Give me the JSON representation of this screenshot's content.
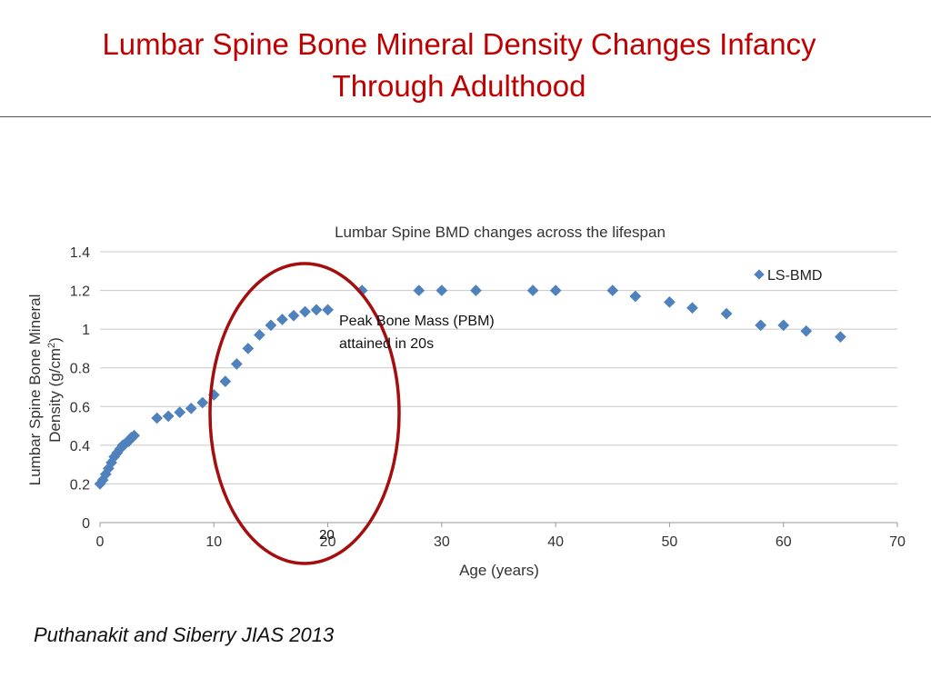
{
  "slide": {
    "title_line1": "Lumbar Spine Bone Mineral Density Changes Infancy",
    "title_line2": "Through Adulthood",
    "citation": "Puthanakit and Siberry JIAS 2013",
    "annotation_line1": "Peak Bone Mass (PBM)",
    "annotation_line2": "attained in 20s",
    "marker_label": "20"
  },
  "colors": {
    "title": "#c00000",
    "marker": "#4f81bd",
    "ellipse": "#a50e0e",
    "grid": "#c8c8c8"
  },
  "chart_data": {
    "type": "scatter",
    "title": "Lumbar Spine BMD changes across the lifespan",
    "xlabel": "Age (years)",
    "ylabel": "Lumbar Spine Bone Mineral Density (g/cm²)",
    "ylabel_parts": [
      "Lumbar Spine Bone Mineral",
      "Density (g/cm",
      "2",
      ")"
    ],
    "xlim": [
      0,
      70
    ],
    "ylim": [
      0,
      1.4
    ],
    "x_ticks": [
      "0",
      "10",
      "20",
      "30",
      "40",
      "50",
      "60",
      "70"
    ],
    "y_ticks": [
      "0",
      "0.2",
      "0.4",
      "0.6",
      "0.8",
      "1",
      "1.2",
      "1.4"
    ],
    "grid": true,
    "legend": "top-right",
    "series": [
      {
        "name": "LS-BMD",
        "points": [
          [
            0,
            0.2
          ],
          [
            0.25,
            0.22
          ],
          [
            0.5,
            0.25
          ],
          [
            0.75,
            0.28
          ],
          [
            1,
            0.31
          ],
          [
            1.25,
            0.34
          ],
          [
            1.5,
            0.36
          ],
          [
            1.75,
            0.38
          ],
          [
            2,
            0.4
          ],
          [
            2.25,
            0.41
          ],
          [
            2.5,
            0.42
          ],
          [
            2.75,
            0.44
          ],
          [
            3,
            0.45
          ],
          [
            5,
            0.54
          ],
          [
            6,
            0.55
          ],
          [
            7,
            0.57
          ],
          [
            8,
            0.59
          ],
          [
            9,
            0.62
          ],
          [
            10,
            0.66
          ],
          [
            11,
            0.73
          ],
          [
            12,
            0.82
          ],
          [
            13,
            0.9
          ],
          [
            14,
            0.97
          ],
          [
            15,
            1.02
          ],
          [
            16,
            1.05
          ],
          [
            17,
            1.07
          ],
          [
            18,
            1.09
          ],
          [
            19,
            1.1
          ],
          [
            20,
            1.1
          ],
          [
            23,
            1.2
          ],
          [
            28,
            1.2
          ],
          [
            30,
            1.2
          ],
          [
            33,
            1.2
          ],
          [
            38,
            1.2
          ],
          [
            40,
            1.2
          ],
          [
            45,
            1.2
          ],
          [
            47,
            1.17
          ],
          [
            50,
            1.14
          ],
          [
            52,
            1.11
          ],
          [
            55,
            1.08
          ],
          [
            58,
            1.02
          ],
          [
            60,
            1.02
          ],
          [
            62,
            0.99
          ],
          [
            65,
            0.96
          ]
        ]
      }
    ]
  }
}
